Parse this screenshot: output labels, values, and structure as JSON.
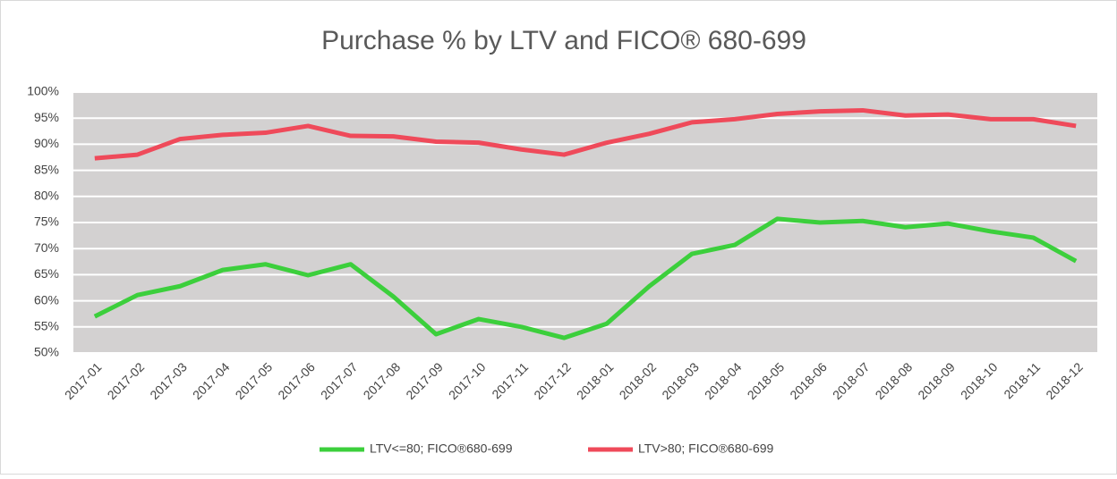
{
  "chart_data": {
    "type": "line",
    "title": "Purchase % by LTV and FICO® 680-699",
    "categories": [
      "2017-01",
      "2017-02",
      "2017-03",
      "2017-04",
      "2017-05",
      "2017-06",
      "2017-07",
      "2017-08",
      "2017-09",
      "2017-10",
      "2017-11",
      "2017-12",
      "2018-01",
      "2018-02",
      "2018-03",
      "2018-04",
      "2018-05",
      "2018-06",
      "2018-07",
      "2018-08",
      "2018-09",
      "2018-10",
      "2018-11",
      "2018-12"
    ],
    "series": [
      {
        "name": "LTV<=80; FICO®680-699",
        "color": "#3ccf3c",
        "values": [
          57,
          61.1,
          62.8,
          65.9,
          67,
          64.9,
          67,
          60.8,
          53.6,
          56.5,
          55,
          52.9,
          55.6,
          62.8,
          69,
          70.7,
          75.7,
          75,
          75.3,
          74.1,
          74.8,
          73.3,
          72.1,
          67.6
        ]
      },
      {
        "name": "LTV>80; FICO®680-699",
        "color": "#ef4a5a",
        "values": [
          87.3,
          88,
          91,
          91.8,
          92.2,
          93.5,
          91.6,
          91.5,
          90.5,
          90.3,
          89,
          88,
          90.3,
          92,
          94.2,
          94.8,
          95.8,
          96.3,
          96.5,
          95.5,
          95.7,
          94.8,
          94.8,
          93.5
        ]
      }
    ],
    "ylim": [
      50,
      100
    ],
    "yticks": [
      {
        "value": 50,
        "label": "50%"
      },
      {
        "value": 55,
        "label": "55%"
      },
      {
        "value": 60,
        "label": "60%"
      },
      {
        "value": 65,
        "label": "65%"
      },
      {
        "value": 70,
        "label": "70%"
      },
      {
        "value": 75,
        "label": "75%"
      },
      {
        "value": 80,
        "label": "80%"
      },
      {
        "value": 85,
        "label": "85%"
      },
      {
        "value": 90,
        "label": "90%"
      },
      {
        "value": 95,
        "label": "95%"
      },
      {
        "value": 100,
        "label": "100%"
      }
    ],
    "grid": true
  }
}
